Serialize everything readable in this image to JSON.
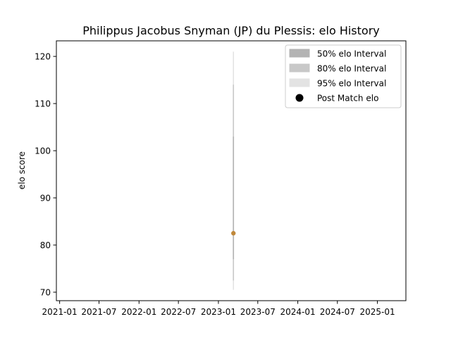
{
  "chart_data": {
    "type": "line",
    "title": "Philippus Jacobus Snyman (JP) du Plessis: elo History",
    "xlabel": "",
    "ylabel": "elo score",
    "xlim": [
      "2020-12-17",
      "2025-05-12"
    ],
    "ylim": [
      68.2,
      123.3
    ],
    "x_ticks": [
      "2021-01",
      "2021-07",
      "2022-01",
      "2022-07",
      "2023-01",
      "2023-07",
      "2024-01",
      "2024-07",
      "2025-01"
    ],
    "y_ticks": [
      70,
      80,
      90,
      100,
      110,
      120
    ],
    "grid": false,
    "legend_placement": "top-right",
    "legend": [
      {
        "label": "50% elo Interval",
        "color": "#b3b3b3",
        "kind": "patch"
      },
      {
        "label": "80% elo Interval",
        "color": "#c8c8c8",
        "kind": "patch"
      },
      {
        "label": "95% elo Interval",
        "color": "#e3e3e3",
        "kind": "patch"
      },
      {
        "label": "Post Match elo",
        "color": "#000000",
        "kind": "marker"
      }
    ],
    "series": [
      {
        "name": "Post Match elo",
        "color": "#c0883a",
        "points": [
          {
            "x": "2023-03-11",
            "y": 82.5,
            "intervals": {
              "50": [
                77.0,
                103.0
              ],
              "80": [
                72.5,
                114.0
              ],
              "95": [
                70.5,
                121.0
              ]
            }
          }
        ]
      }
    ]
  }
}
